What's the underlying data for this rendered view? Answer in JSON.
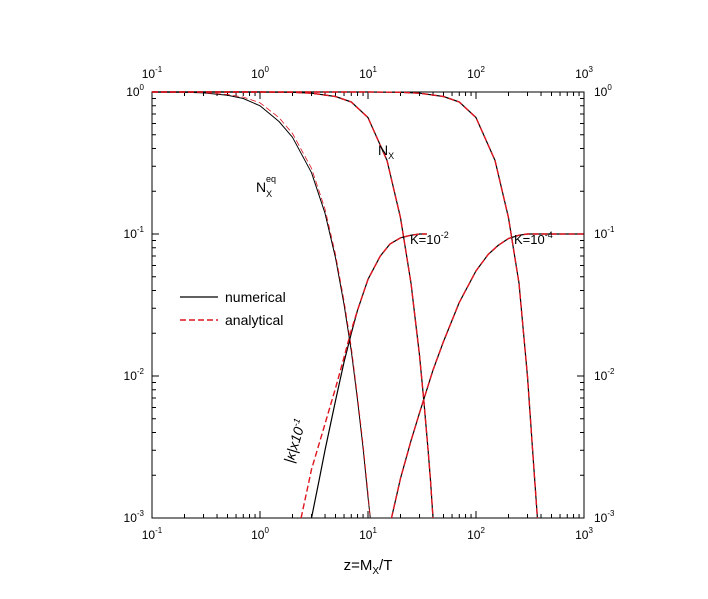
{
  "chart_data": {
    "type": "line",
    "xscale": "log",
    "yscale": "log",
    "xlim": [
      0.1,
      1000
    ],
    "ylim": [
      0.001,
      1
    ],
    "grid": false,
    "legend_position": "center-left",
    "xlabel": {
      "base": "z=M",
      "sub": "X",
      "rest": "/T"
    },
    "ticks_x": [
      {
        "value": 0.1,
        "base": "10",
        "exp": "-1"
      },
      {
        "value": 1,
        "base": "10",
        "exp": "0"
      },
      {
        "value": 10,
        "base": "10",
        "exp": "1"
      },
      {
        "value": 100,
        "base": "10",
        "exp": "2"
      },
      {
        "value": 1000,
        "base": "10",
        "exp": "3"
      }
    ],
    "ticks_y": [
      {
        "value": 1,
        "base": "10",
        "exp": "0"
      },
      {
        "value": 0.1,
        "base": "10",
        "exp": "-1"
      },
      {
        "value": 0.01,
        "base": "10",
        "exp": "-2"
      },
      {
        "value": 0.001,
        "base": "10",
        "exp": "-3"
      }
    ],
    "legend": [
      {
        "label": "numerical",
        "style": "solid",
        "color": "#000000"
      },
      {
        "label": "analytical",
        "style": "dashed",
        "color": "#e0141e"
      }
    ],
    "annotations": {
      "nx": {
        "base": "N",
        "sub": "X"
      },
      "nxeq": {
        "base": "N",
        "sub": "X",
        "sup": "eq"
      },
      "k1": {
        "base": "K=10",
        "sup": "-2"
      },
      "k2": {
        "base": "K=10",
        "sup": "-4"
      },
      "kappa": {
        "text": "|κ|x10",
        "sup": "-1"
      }
    },
    "series": [
      {
        "curve": "nxeq-numerical",
        "color": "#000000",
        "style": "solid",
        "width": 1.0,
        "x": [
          0.1,
          0.2,
          0.3,
          0.5,
          0.7,
          1,
          1.5,
          2,
          3,
          4,
          5,
          6,
          7,
          8,
          9,
          10,
          10.5
        ],
        "y": [
          1,
          0.995,
          0.985,
          0.95,
          0.9,
          0.8,
          0.62,
          0.48,
          0.27,
          0.14,
          0.068,
          0.032,
          0.015,
          0.0068,
          0.0031,
          0.0014,
          0.001
        ]
      },
      {
        "curve": "nxeq-analytical",
        "color": "#e0141e",
        "style": "dashed",
        "width": 0.8,
        "x": [
          0.1,
          0.2,
          0.3,
          0.5,
          0.7,
          1,
          1.5,
          2,
          3,
          4,
          5,
          6,
          7,
          8,
          9,
          10,
          10.5
        ],
        "y": [
          1,
          0.997,
          0.99,
          0.96,
          0.92,
          0.84,
          0.66,
          0.51,
          0.29,
          0.15,
          0.072,
          0.034,
          0.016,
          0.0072,
          0.0033,
          0.0015,
          0.001
        ]
      },
      {
        "curve": "nx-k1e-2-numerical",
        "color": "#000000",
        "style": "solid",
        "width": 1.2,
        "x": [
          0.1,
          0.5,
          1,
          2,
          3,
          5,
          7,
          10,
          15,
          20,
          25,
          30,
          33,
          36,
          38,
          40
        ],
        "y": [
          1,
          1,
          1,
          0.995,
          0.98,
          0.93,
          0.85,
          0.66,
          0.33,
          0.13,
          0.045,
          0.014,
          0.0065,
          0.003,
          0.0018,
          0.001
        ]
      },
      {
        "curve": "nx-k1e-2-analytical",
        "color": "#e0141e",
        "style": "dashed",
        "width": 1.4,
        "x": [
          0.1,
          0.5,
          1,
          2,
          3,
          5,
          7,
          10,
          15,
          20,
          25,
          30,
          33,
          36,
          38,
          40
        ],
        "y": [
          1,
          1,
          1,
          0.995,
          0.98,
          0.93,
          0.85,
          0.66,
          0.33,
          0.13,
          0.045,
          0.014,
          0.0065,
          0.003,
          0.0018,
          0.001
        ]
      },
      {
        "curve": "nx-k1e-4-numerical",
        "color": "#000000",
        "style": "solid",
        "width": 1.2,
        "x": [
          0.1,
          1,
          10,
          20,
          30,
          50,
          70,
          100,
          150,
          200,
          250,
          300,
          340,
          370
        ],
        "y": [
          1,
          1,
          1,
          0.995,
          0.98,
          0.93,
          0.85,
          0.66,
          0.33,
          0.13,
          0.045,
          0.0099,
          0.0025,
          0.001
        ]
      },
      {
        "curve": "nx-k1e-4-analytical",
        "color": "#e0141e",
        "style": "dashed",
        "width": 1.4,
        "x": [
          0.1,
          1,
          10,
          20,
          30,
          50,
          70,
          100,
          150,
          200,
          250,
          300,
          340,
          370
        ],
        "y": [
          1,
          1,
          1,
          0.995,
          0.98,
          0.93,
          0.85,
          0.66,
          0.33,
          0.13,
          0.045,
          0.0099,
          0.0025,
          0.001
        ]
      },
      {
        "curve": "kappa-numerical",
        "color": "#000000",
        "style": "solid",
        "width": 1.2,
        "x": [
          3.0,
          3.5,
          4,
          5,
          6,
          7,
          8,
          10,
          13,
          16,
          20,
          25,
          30,
          35
        ],
        "y": [
          0.001,
          0.0018,
          0.003,
          0.0067,
          0.0125,
          0.02,
          0.029,
          0.048,
          0.07,
          0.085,
          0.094,
          0.098,
          0.1,
          0.1
        ]
      },
      {
        "curve": "kappa-analytical",
        "color": "#e0141e",
        "style": "dashed",
        "width": 1.4,
        "x": [
          2.4,
          3,
          4,
          5,
          6,
          7,
          8,
          10,
          13,
          16,
          20,
          25,
          30,
          35
        ],
        "y": [
          0.001,
          0.0022,
          0.0046,
          0.0082,
          0.0135,
          0.021,
          0.029,
          0.048,
          0.07,
          0.085,
          0.094,
          0.098,
          0.1,
          0.1
        ]
      },
      {
        "curve": "kappa-k1e-4-numerical",
        "color": "#000000",
        "style": "solid",
        "width": 1.2,
        "x": [
          16.5,
          20,
          25,
          30,
          40,
          50,
          70,
          100,
          130,
          160,
          200,
          250,
          300,
          1000
        ],
        "y": [
          0.001,
          0.0019,
          0.0035,
          0.0055,
          0.011,
          0.0175,
          0.033,
          0.055,
          0.072,
          0.083,
          0.093,
          0.098,
          0.1,
          0.1
        ]
      },
      {
        "curve": "kappa-k1e-4-analytical",
        "color": "#e0141e",
        "style": "dashed",
        "width": 1.4,
        "x": [
          16.5,
          20,
          25,
          30,
          40,
          50,
          70,
          100,
          130,
          160,
          200,
          250,
          300,
          1000
        ],
        "y": [
          0.001,
          0.0019,
          0.0035,
          0.0055,
          0.011,
          0.0175,
          0.033,
          0.055,
          0.072,
          0.083,
          0.093,
          0.098,
          0.1,
          0.1
        ]
      }
    ]
  }
}
